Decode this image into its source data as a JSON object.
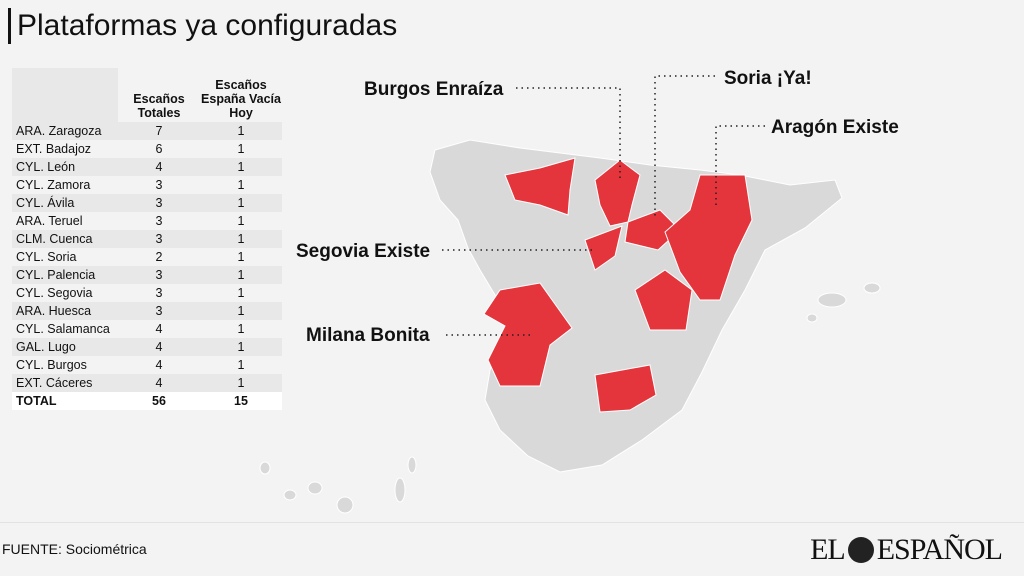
{
  "header": {
    "title": "Plataformas ya configuradas"
  },
  "table": {
    "columns": [
      "",
      "Escaños Totales",
      "Escaños España Vacía Hoy"
    ],
    "rows": [
      [
        "ARA. Zaragoza",
        "7",
        "1"
      ],
      [
        "EXT. Badajoz",
        "6",
        "1"
      ],
      [
        "CYL. León",
        "4",
        "1"
      ],
      [
        "CYL. Zamora",
        "3",
        "1"
      ],
      [
        "CYL. Ávila",
        "3",
        "1"
      ],
      [
        "ARA. Teruel",
        "3",
        "1"
      ],
      [
        "CLM. Cuenca",
        "3",
        "1"
      ],
      [
        "CYL. Soria",
        "2",
        "1"
      ],
      [
        "CYL. Palencia",
        "3",
        "1"
      ],
      [
        "CYL. Segovia",
        "3",
        "1"
      ],
      [
        "ARA. Huesca",
        "3",
        "1"
      ],
      [
        "CYL. Salamanca",
        "4",
        "1"
      ],
      [
        "GAL. Lugo",
        "4",
        "1"
      ],
      [
        "CYL. Burgos",
        "4",
        "1"
      ],
      [
        "EXT. Cáceres",
        "4",
        "1"
      ]
    ],
    "total": [
      "TOTAL",
      "56",
      "15"
    ]
  },
  "map": {
    "labels": [
      "Burgos Enraíza",
      "Soria ¡Ya!",
      "Aragón Existe",
      "Segovia Existe",
      "Milana Bonita"
    ]
  },
  "footer": {
    "source": "FUENTE: Sociométrica",
    "logo": [
      "EL",
      "ESPAÑOL"
    ]
  }
}
